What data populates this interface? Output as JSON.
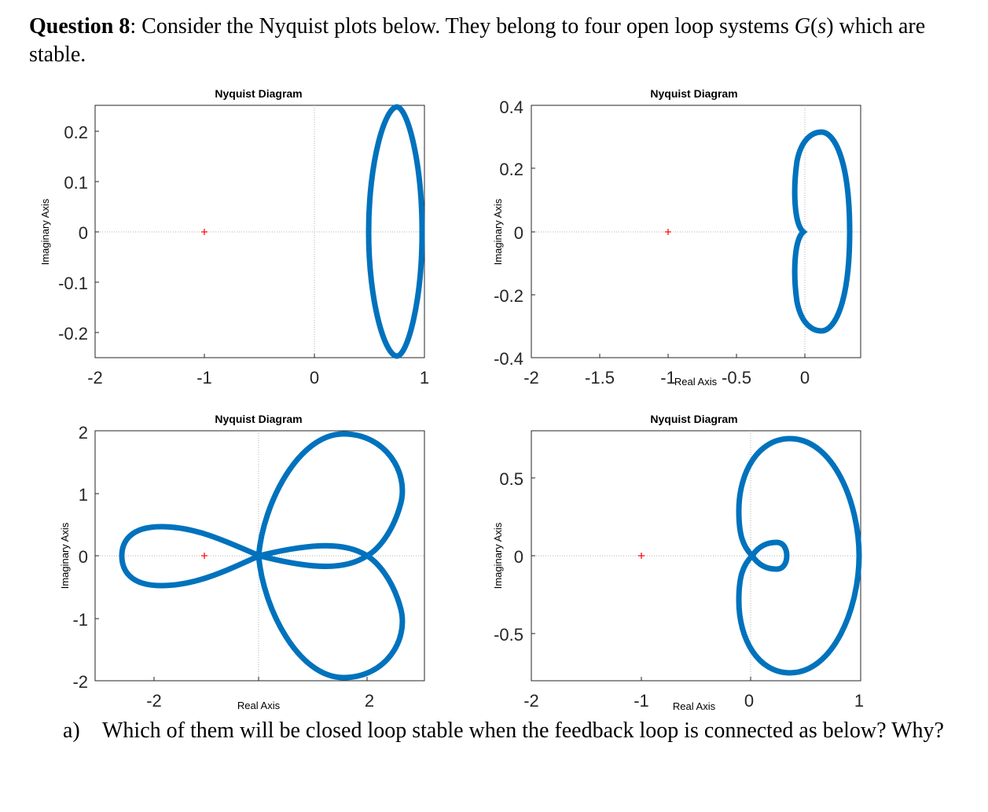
{
  "question": {
    "number": "Question 8",
    "text_before": ": Consider the Nyquist plots below. They belong to four open loop systems ",
    "symbol_G": "G",
    "paren_open": "(",
    "symbol_s": "s",
    "paren_close": ")",
    "text_after": " which are stable."
  },
  "sub_a": {
    "label": "a)",
    "text": "Which of them will be closed loop stable when the feedback loop is connected as below? Why?"
  },
  "colors": {
    "curve": "#0072bd",
    "marker": "#ff0000",
    "axes": "#262626",
    "grid": "#b0b0b0"
  },
  "chart_data": [
    {
      "type": "line",
      "title": "Nyquist Diagram",
      "xlabel": "",
      "ylabel": "Imaginary Axis",
      "xlim": [
        -2,
        1
      ],
      "ylim": [
        -0.25,
        0.25
      ],
      "xticks": [
        "-2",
        "-1",
        "0",
        "1"
      ],
      "yticks": [
        "0.2",
        "0.1",
        "0",
        "-0.1",
        "-0.2"
      ],
      "critical_point": [
        -1,
        0
      ],
      "curve": "ellipse-shaped closed contour centred near Re = 0.75, crossing the real axis at about 0.5 and 1.0, reaching Im = ±0.25",
      "x": [
        0.98,
        0.93,
        0.82,
        0.74,
        0.63,
        0.53,
        0.5,
        0.53,
        0.63,
        0.74,
        0.82,
        0.93,
        0.98,
        1.0
      ],
      "y": [
        0.1,
        0.18,
        0.24,
        0.25,
        0.23,
        0.12,
        0.0,
        -0.12,
        -0.23,
        -0.25,
        -0.24,
        -0.18,
        -0.1,
        0.0
      ]
    },
    {
      "type": "line",
      "title": "Nyquist Diagram",
      "xlabel": "Real Axis",
      "ylabel": "Imaginary Axis",
      "xlim": [
        -2,
        0.2
      ],
      "ylim": [
        -0.4,
        0.4
      ],
      "xticks": [
        "-2",
        "-1.5",
        "-1",
        "-0.5",
        "0"
      ],
      "yticks": [
        "0.4",
        "0.2",
        "0",
        "-0.2",
        "-0.4"
      ],
      "critical_point": [
        -1,
        0
      ],
      "curve": "two-lobed (heart-shaped) contour touching the origin, extending to Re ≈ 0.14 and Im ≈ ±0.31",
      "x": [
        0.0,
        -0.02,
        -0.01,
        0.04,
        0.1,
        0.13,
        0.14,
        0.13,
        0.1,
        0.04,
        -0.01,
        -0.02,
        0.0
      ],
      "y": [
        0.0,
        0.1,
        0.24,
        0.3,
        0.31,
        0.2,
        0.0,
        -0.2,
        -0.31,
        -0.3,
        -0.24,
        -0.1,
        0.0
      ]
    },
    {
      "type": "line",
      "title": "Nyquist Diagram",
      "xlabel": "Real Axis",
      "ylabel": "Imaginary Axis",
      "xlim": [
        -2.6,
        3
      ],
      "ylim": [
        -2,
        2
      ],
      "xticks": [
        "-2",
        "2"
      ],
      "yticks": [
        "2",
        "1",
        "0",
        "-1",
        "-2"
      ],
      "critical_point": [
        -1,
        0
      ],
      "curve": "three-lobed contour passing through the origin; left lobe reaches Re ≈ -2.5, right lobes reach Re ≈ 2.3 and Im ≈ ±1.95",
      "x": [
        0.0,
        0.4,
        1.5,
        2.2,
        2.0,
        1.2,
        0.0,
        -1.0,
        -2.0,
        -2.5,
        -2.0,
        -1.0,
        0.0,
        1.2,
        2.0,
        2.2,
        1.5,
        0.4,
        0.0
      ],
      "y": [
        0.0,
        1.0,
        1.95,
        1.0,
        0.0,
        0.23,
        0.0,
        -0.3,
        -0.45,
        0.0,
        0.45,
        0.3,
        0.0,
        -0.23,
        0.0,
        -1.0,
        -1.95,
        -1.0,
        0.0
      ]
    },
    {
      "type": "line",
      "title": "Nyquist Diagram",
      "xlabel": "Real Axis",
      "ylabel": "Imaginary Axis",
      "xlim": [
        -2.05,
        1.05
      ],
      "ylim": [
        -0.8,
        0.8
      ],
      "xticks": [
        "-2",
        "-1",
        "0",
        "1"
      ],
      "yticks": [
        "0.5",
        "0",
        "-0.5"
      ],
      "critical_point": [
        -1,
        0
      ],
      "curve": "large loop reaching Re ≈ 1.0 and Im ≈ ±0.75 with a small inner loop near Re ≈ 0.1–0.3 crossing at the origin",
      "x": [
        0.0,
        0.1,
        0.25,
        0.33,
        0.25,
        0.1,
        0.0,
        -0.1,
        -0.1,
        0.4,
        0.9,
        1.0,
        0.9,
        0.4,
        -0.1,
        -0.1,
        0.0
      ],
      "y": [
        0.0,
        0.08,
        0.08,
        0.0,
        -0.08,
        -0.08,
        0.0,
        0.35,
        0.65,
        0.75,
        0.4,
        0.0,
        -0.4,
        -0.75,
        -0.65,
        -0.35,
        0.0
      ]
    }
  ]
}
